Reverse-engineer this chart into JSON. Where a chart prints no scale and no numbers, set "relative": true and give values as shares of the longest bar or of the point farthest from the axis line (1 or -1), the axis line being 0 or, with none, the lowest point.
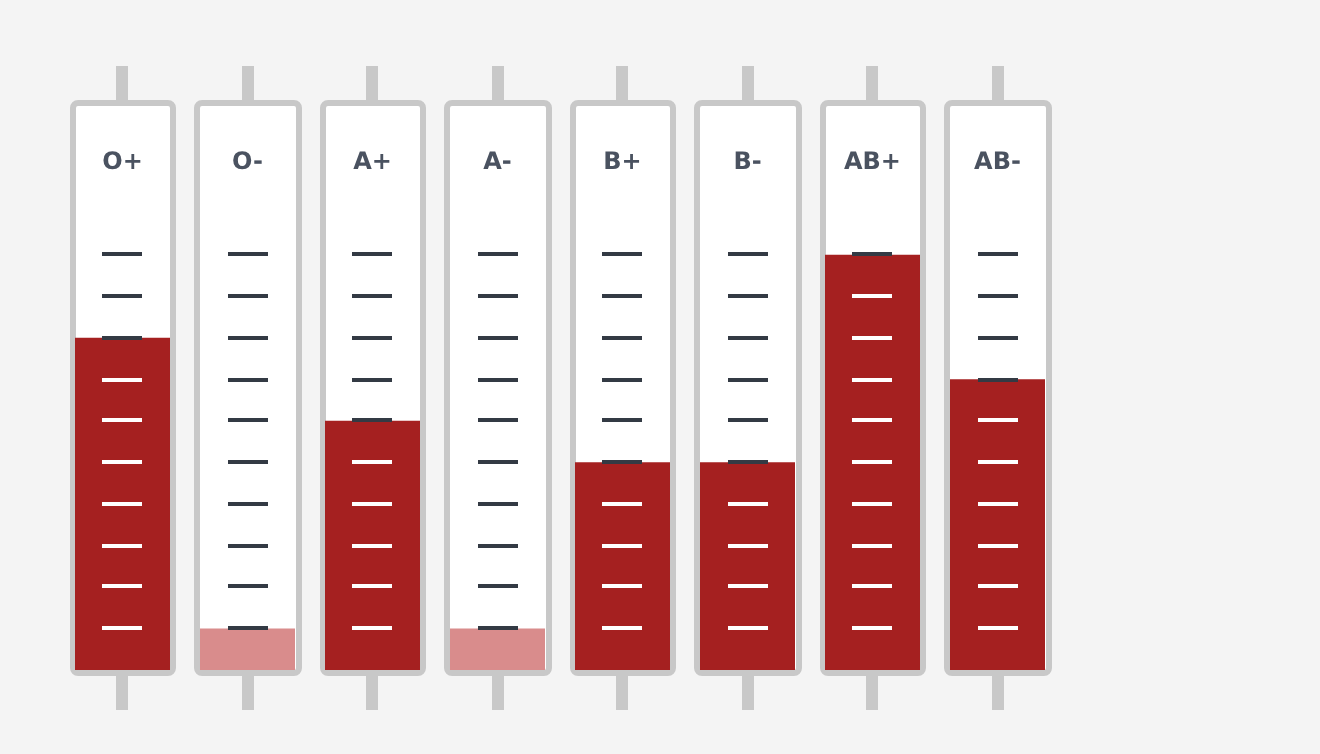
{
  "chart_data": {
    "type": "bar",
    "relative": true,
    "categories": [
      "O+",
      "O-",
      "A+",
      "A-",
      "B+",
      "B-",
      "AB+",
      "AB-"
    ],
    "values": [
      0.8,
      0.1,
      0.6,
      0.1,
      0.5,
      0.5,
      1,
      0.7
    ],
    "colors": [
      "#a52020",
      "#d98c8c",
      "#a52020",
      "#d98c8c",
      "#a52020",
      "#a52020",
      "#a52020",
      "#a52020"
    ]
  }
}
